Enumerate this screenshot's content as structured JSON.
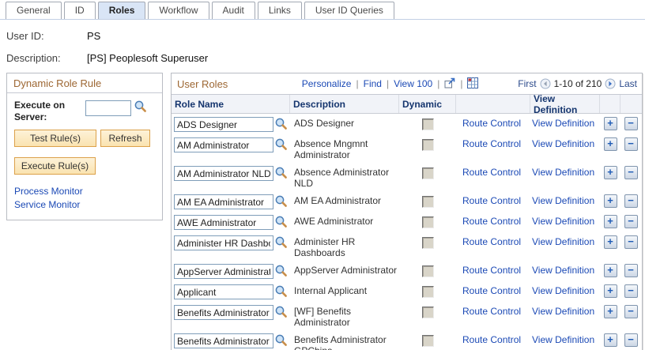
{
  "tabs": [
    {
      "label": "General",
      "active": false
    },
    {
      "label": "ID",
      "active": false
    },
    {
      "label": "Roles",
      "active": true
    },
    {
      "label": "Workflow",
      "active": false
    },
    {
      "label": "Audit",
      "active": false
    },
    {
      "label": "Links",
      "active": false
    },
    {
      "label": "User ID Queries",
      "active": false
    }
  ],
  "page": {
    "user_id_label": "User ID:",
    "user_id": "PS",
    "description_label": "Description:",
    "description": "[PS] Peoplesoft Superuser"
  },
  "dynamic_role_rule": {
    "title": "Dynamic Role Rule",
    "execute_on_server_label": "Execute on Server:",
    "server_value": "",
    "buttons": {
      "test": "Test Rule(s)",
      "refresh": "Refresh",
      "execute": "Execute Rule(s)"
    },
    "links": {
      "process_monitor": "Process Monitor",
      "service_monitor": "Service Monitor"
    }
  },
  "user_roles": {
    "title": "User Roles",
    "toolbar": {
      "personalize": "Personalize",
      "find": "Find",
      "view": "View 100",
      "icons": [
        "expand-grid-icon",
        "download-icon"
      ]
    },
    "pagination": {
      "first": "First",
      "range": "1-10 of 210",
      "last": "Last"
    },
    "columns": {
      "role_name": "Role Name",
      "description": "Description",
      "dynamic": "Dynamic",
      "view_definition": "View Definition"
    },
    "row_links": {
      "route_control": "Route Control",
      "view_definition": "View Definition"
    },
    "rows": [
      {
        "role_name": "ADS Designer",
        "description": "ADS Designer",
        "dynamic_checked": false
      },
      {
        "role_name": "AM Administrator",
        "description": "Absence Mngmnt Administrator",
        "dynamic_checked": false
      },
      {
        "role_name": "AM Administrator NLD",
        "description": "Absence Administrator NLD",
        "dynamic_checked": false
      },
      {
        "role_name": "AM EA Administrator",
        "description": "AM EA Administrator",
        "dynamic_checked": false
      },
      {
        "role_name": "AWE Administrator",
        "description": "AWE Administrator",
        "dynamic_checked": false
      },
      {
        "role_name": "Administer HR Dashbo",
        "description": "Administer HR Dashboards",
        "dynamic_checked": false
      },
      {
        "role_name": "AppServer Administrato",
        "description": "AppServer Administrator",
        "dynamic_checked": false
      },
      {
        "role_name": "Applicant",
        "description": "Internal Applicant",
        "dynamic_checked": false
      },
      {
        "role_name": "Benefits Administrator",
        "description": "[WF] Benefits Administrator",
        "dynamic_checked": false
      },
      {
        "role_name": "Benefits Administrator G",
        "description": "Benefits Administrator GPChina",
        "dynamic_checked": false
      }
    ]
  },
  "colors": {
    "link": "#1b49b5",
    "groupbox_title": "#9d6733",
    "column_header_text": "#15356e",
    "active_tab_bg": "#d9e5f6",
    "button_bg": "#fbe8bf",
    "button_border": "#dca14a",
    "row_button_symbol": "#1f5bb5"
  }
}
